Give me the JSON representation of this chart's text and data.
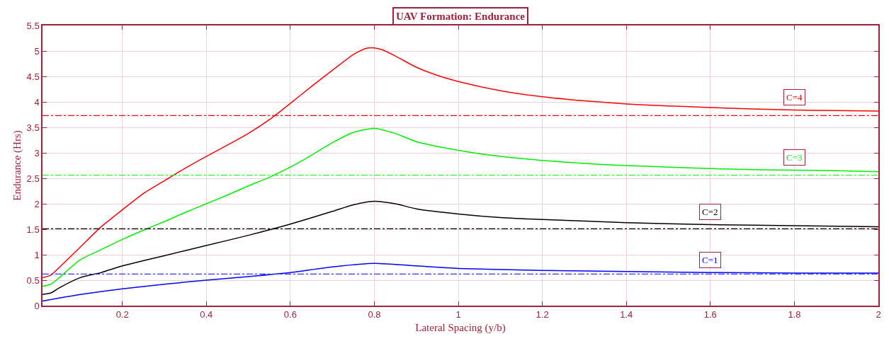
{
  "chart_data": {
    "type": "line",
    "title": "UAV Formation: Endurance",
    "xlabel": "Lateral Spacing (y/b)",
    "ylabel": "Endurance (Hrs)",
    "xlim": [
      0.01,
      2
    ],
    "xticks": [
      0.2,
      0.4,
      0.6,
      0.8,
      1,
      1.2,
      1.4,
      1.6,
      1.8,
      2
    ],
    "ylim": [
      0,
      5.5
    ],
    "yticks": [
      0,
      0.5,
      1,
      1.5,
      2,
      2.5,
      3,
      3.5,
      4,
      4.5,
      5,
      5.5
    ],
    "grid": true,
    "legend": false,
    "marker": "none",
    "line_style": "solid",
    "series": [
      {
        "name": "C=4",
        "color": "#ff0000",
        "x": [
          0.01,
          0.03,
          0.05,
          0.1,
          0.15,
          0.2,
          0.25,
          0.3,
          0.35,
          0.4,
          0.45,
          0.5,
          0.55,
          0.6,
          0.65,
          0.7,
          0.75,
          0.78,
          0.8,
          0.82,
          0.85,
          0.9,
          0.95,
          1.0,
          1.1,
          1.2,
          1.3,
          1.4,
          1.5,
          1.6,
          1.7,
          1.8,
          1.9,
          2.0
        ],
        "values": [
          0.55,
          0.6,
          0.75,
          1.15,
          1.55,
          1.88,
          2.2,
          2.45,
          2.7,
          2.93,
          3.15,
          3.38,
          3.65,
          3.97,
          4.3,
          4.62,
          4.93,
          5.05,
          5.06,
          5.02,
          4.9,
          4.68,
          4.52,
          4.4,
          4.22,
          4.1,
          4.02,
          3.96,
          3.92,
          3.89,
          3.86,
          3.84,
          3.83,
          3.82
        ]
      },
      {
        "name": "C=3",
        "color": "#00ee00",
        "x": [
          0.01,
          0.03,
          0.05,
          0.1,
          0.15,
          0.2,
          0.25,
          0.3,
          0.35,
          0.4,
          0.45,
          0.5,
          0.55,
          0.6,
          0.65,
          0.7,
          0.75,
          0.8,
          0.85,
          0.9,
          1.0,
          1.1,
          1.2,
          1.3,
          1.4,
          1.5,
          1.6,
          1.7,
          1.8,
          1.9,
          2.0
        ],
        "values": [
          0.38,
          0.42,
          0.55,
          0.9,
          1.1,
          1.3,
          1.48,
          1.65,
          1.83,
          2.0,
          2.17,
          2.35,
          2.52,
          2.72,
          2.95,
          3.2,
          3.4,
          3.48,
          3.38,
          3.22,
          3.05,
          2.93,
          2.85,
          2.79,
          2.75,
          2.72,
          2.69,
          2.67,
          2.66,
          2.65,
          2.63
        ]
      },
      {
        "name": "C=2",
        "color": "#000000",
        "x": [
          0.01,
          0.03,
          0.05,
          0.1,
          0.15,
          0.2,
          0.3,
          0.4,
          0.5,
          0.6,
          0.7,
          0.75,
          0.8,
          0.85,
          0.9,
          1.0,
          1.1,
          1.2,
          1.4,
          1.6,
          1.8,
          2.0
        ],
        "values": [
          0.22,
          0.25,
          0.35,
          0.55,
          0.65,
          0.78,
          0.98,
          1.18,
          1.38,
          1.6,
          1.85,
          1.98,
          2.05,
          2.0,
          1.9,
          1.8,
          1.73,
          1.69,
          1.63,
          1.59,
          1.57,
          1.55
        ]
      },
      {
        "name": "C=1",
        "color": "#0000ff",
        "x": [
          0.01,
          0.05,
          0.1,
          0.2,
          0.3,
          0.4,
          0.5,
          0.6,
          0.7,
          0.8,
          0.9,
          1.0,
          1.2,
          1.4,
          1.6,
          1.8,
          2.0
        ],
        "values": [
          0.09,
          0.15,
          0.22,
          0.33,
          0.42,
          0.5,
          0.57,
          0.65,
          0.76,
          0.83,
          0.78,
          0.73,
          0.69,
          0.67,
          0.65,
          0.64,
          0.64
        ]
      }
    ],
    "ref_lines": [
      {
        "axis": "y",
        "value": 3.73,
        "color": "#e01010",
        "line_style": "dashdot"
      },
      {
        "axis": "y",
        "value": 2.56,
        "color": "#33ee33",
        "line_style": "dashdot"
      },
      {
        "axis": "y",
        "value": 1.51,
        "color": "#000000",
        "line_style": "dashdot"
      },
      {
        "axis": "y",
        "value": 0.62,
        "color": "#3333ff",
        "line_style": "dashdot"
      }
    ]
  }
}
